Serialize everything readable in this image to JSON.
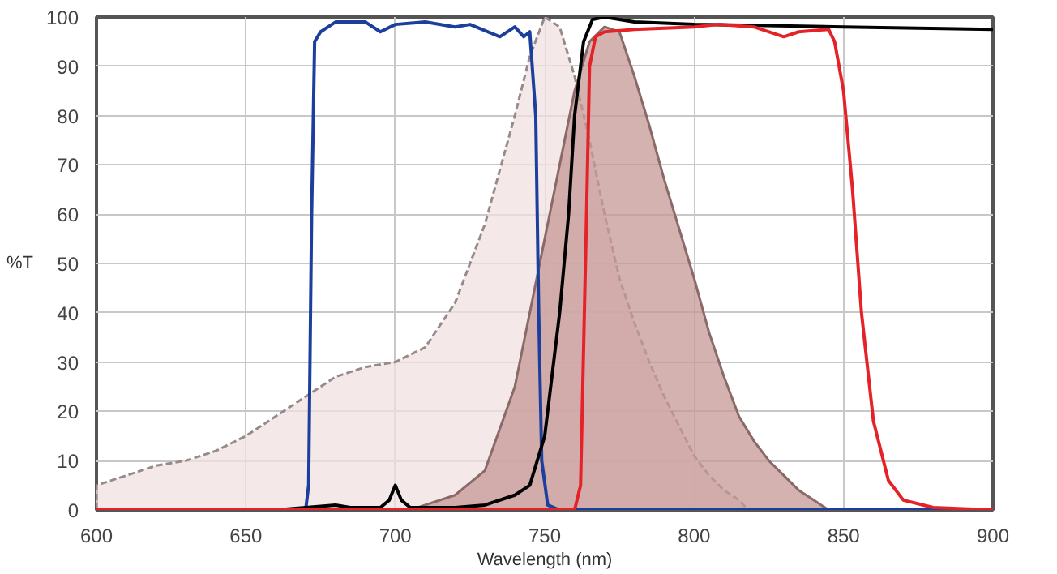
{
  "chart_data": {
    "type": "line",
    "xlabel": "Wavelength (nm)",
    "ylabel": "%T",
    "xlim": [
      600,
      900
    ],
    "ylim": [
      0,
      100
    ],
    "xticks": [
      600,
      650,
      700,
      750,
      800,
      850,
      900
    ],
    "yticks": [
      0,
      10,
      20,
      30,
      40,
      50,
      60,
      70,
      80,
      90,
      100
    ],
    "grid": true,
    "marker": "none",
    "series": [
      {
        "type": "area",
        "color": "#f2e0e0",
        "line_style": "dashed",
        "x": [
          600,
          610,
          620,
          630,
          640,
          650,
          660,
          670,
          680,
          690,
          700,
          710,
          720,
          730,
          740,
          745,
          750,
          755,
          760,
          765,
          770,
          775,
          780,
          785,
          790,
          795,
          800,
          805,
          810,
          815,
          818
        ],
        "values": [
          5,
          7,
          9,
          10,
          12,
          15,
          19,
          23,
          27,
          29,
          30,
          33,
          42,
          58,
          80,
          92,
          100,
          98,
          88,
          75,
          60,
          47,
          38,
          30,
          23,
          17,
          11,
          7,
          4,
          2,
          0
        ]
      },
      {
        "type": "area",
        "color": "#c49896",
        "line_style": "solid",
        "x": [
          705,
          710,
          720,
          730,
          740,
          745,
          750,
          755,
          760,
          765,
          770,
          775,
          780,
          785,
          790,
          795,
          800,
          805,
          810,
          815,
          820,
          825,
          830,
          835,
          840,
          845
        ],
        "values": [
          0,
          1,
          3,
          8,
          25,
          40,
          55,
          70,
          85,
          95,
          98,
          97,
          88,
          78,
          67,
          57,
          47,
          36,
          27,
          19,
          14,
          10,
          7,
          4,
          2,
          0
        ]
      },
      {
        "color": "#1c3f9e",
        "line_style": "solid",
        "x": [
          600,
          670,
          671,
          672,
          673,
          675,
          680,
          690,
          695,
          700,
          710,
          720,
          725,
          735,
          740,
          743,
          745,
          747,
          748,
          749,
          751,
          755,
          900
        ],
        "values": [
          0,
          0,
          5,
          60,
          95,
          97,
          99,
          99,
          97,
          98.5,
          99,
          98,
          98.5,
          96,
          98,
          96,
          97,
          80,
          40,
          10,
          1,
          0,
          0
        ]
      },
      {
        "color": "#000000",
        "line_style": "solid",
        "x": [
          600,
          660,
          680,
          685,
          695,
          698,
          700,
          702,
          705,
          720,
          730,
          740,
          745,
          750,
          755,
          758,
          760,
          763,
          766,
          770,
          780,
          800,
          850,
          900
        ],
        "values": [
          0,
          0,
          1,
          0.5,
          0.5,
          2,
          5,
          2,
          0.5,
          0.5,
          1,
          3,
          5,
          15,
          40,
          60,
          80,
          95,
          99.5,
          100,
          99,
          98.5,
          98,
          97.5
        ]
      },
      {
        "color": "#e52228",
        "line_style": "solid",
        "x": [
          600,
          760,
          762,
          764,
          765,
          767,
          770,
          780,
          800,
          808,
          820,
          830,
          835,
          845,
          847,
          850,
          853,
          856,
          860,
          865,
          870,
          880,
          900
        ],
        "values": [
          0,
          0,
          5,
          60,
          90,
          96,
          97,
          97.5,
          98,
          98.5,
          98,
          96,
          97,
          97.5,
          95,
          85,
          65,
          40,
          18,
          6,
          2,
          0.5,
          0
        ]
      }
    ]
  }
}
